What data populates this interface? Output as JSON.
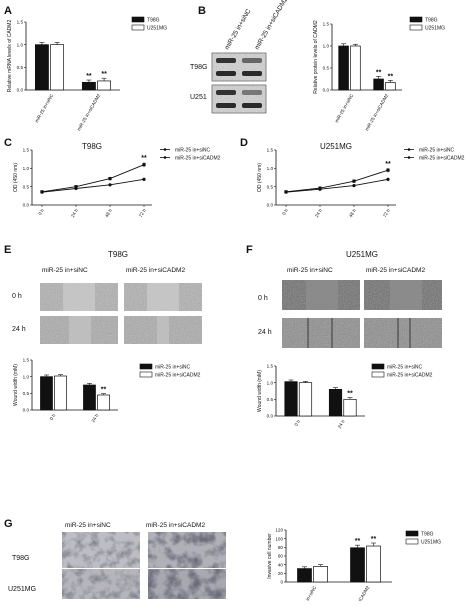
{
  "panels": [
    "A",
    "B",
    "C",
    "D",
    "E",
    "F",
    "G"
  ],
  "colors": {
    "bar_dark": "#111111",
    "bar_light": "#ffffff",
    "axis": "#111111"
  },
  "panel_A": {
    "legend": [
      "T98G",
      "U251MG"
    ],
    "ylabel": "Relative mRNA levels of CADM2",
    "categories": [
      "miR-25 in+siNC",
      "miR-25 in+siCADM2"
    ],
    "yticks": [
      "0.0",
      "0.5",
      "1.0",
      "1.5"
    ],
    "sig": [
      "**",
      "**"
    ]
  },
  "panel_B": {
    "blot_columns": [
      "miR-25 in+siNC",
      "miR-25 in+siCADM2"
    ],
    "blot_rows": [
      "T98G",
      "U251"
    ],
    "legend": [
      "T98G",
      "U251MG"
    ],
    "ylabel": "Relative protein levels of CADM2",
    "categories": [
      "miR-25 in+siNC",
      "miR-25 in+siCADM2"
    ],
    "yticks": [
      "0.0",
      "0.5",
      "1.0",
      "1.5"
    ],
    "sig": [
      "**",
      "**"
    ]
  },
  "panel_C": {
    "title": "T98G",
    "ylabel": "OD (450 nm)",
    "xticks": [
      "0 h",
      "24 h",
      "48 h",
      "72 h"
    ],
    "yticks": [
      "0.0",
      "0.5",
      "1.0",
      "1.5"
    ],
    "legend": [
      "miR-25 in+siNC",
      "miR-25 in+siCADM2"
    ],
    "sig": "**"
  },
  "panel_D": {
    "title": "U251MG",
    "ylabel": "OD (450 nm)",
    "xticks": [
      "0 h",
      "24 h",
      "48 h",
      "72 h"
    ],
    "yticks": [
      "0.0",
      "0.5",
      "1.0",
      "1.5"
    ],
    "legend": [
      "miR-25 in+siNC",
      "miR-25 in+siCADM2"
    ],
    "sig": "**"
  },
  "panel_E": {
    "title": "T98G",
    "col_labels": [
      "miR-25 in+siNC",
      "miR-25 in+siCADM2"
    ],
    "row_labels": [
      "0 h",
      "24 h"
    ],
    "legend": [
      "miR-25 in+siNC",
      "miR-25 in+siCADM2"
    ],
    "ylabel": "Wound width (mM)",
    "categories": [
      "0 h",
      "24 h"
    ],
    "yticks": [
      "0.0",
      "0.5",
      "1.0",
      "1.5"
    ],
    "sig": "**"
  },
  "panel_F": {
    "title": "U251MG",
    "col_labels": [
      "miR-25 in+siNC",
      "miR-25 in+siCADM2"
    ],
    "row_labels": [
      "0 h",
      "24 h"
    ],
    "legend": [
      "miR-25 in+siNC",
      "miR-25 in+siCADM2"
    ],
    "ylabel": "Wound width (mM)",
    "categories": [
      "0 h",
      "24 h"
    ],
    "yticks": [
      "0.0",
      "0.5",
      "1.0",
      "1.5"
    ],
    "sig": "**"
  },
  "panel_G": {
    "col_labels": [
      "miR-25 in+siNC",
      "miR-25 in+siCADM2"
    ],
    "row_labels": [
      "T98G",
      "U251MG"
    ],
    "legend": [
      "T98G",
      "U251MG"
    ],
    "ylabel": "Invasive cell number",
    "categories": [
      "miR-25 in+siNC",
      "miR-25 in+siCADM2"
    ],
    "yticks": [
      "0",
      "20",
      "40",
      "60",
      "80",
      "100",
      "120"
    ],
    "sig": [
      "**",
      "**"
    ]
  },
  "chart_data": [
    {
      "panel": "A",
      "type": "bar",
      "categories": [
        "miR-25 in+siNC",
        "miR-25 in+siCADM2"
      ],
      "series": [
        {
          "name": "T98G",
          "values": [
            1.0,
            0.17
          ],
          "errors": [
            0.05,
            0.05
          ]
        },
        {
          "name": "U251MG",
          "values": [
            1.0,
            0.2
          ],
          "errors": [
            0.05,
            0.06
          ]
        }
      ],
      "ylabel": "Relative mRNA levels of CADM2",
      "ylim": [
        0,
        1.5
      ],
      "legend": "top-right"
    },
    {
      "panel": "B",
      "type": "bar",
      "categories": [
        "miR-25 in+siNC",
        "miR-25 in+siCADM2"
      ],
      "series": [
        {
          "name": "T98G",
          "values": [
            1.0,
            0.25
          ],
          "errors": [
            0.05,
            0.06
          ]
        },
        {
          "name": "U251MG",
          "values": [
            1.0,
            0.17
          ],
          "errors": [
            0.04,
            0.05
          ]
        }
      ],
      "ylabel": "Relative protein levels of CADM2",
      "ylim": [
        0,
        1.5
      ],
      "legend": "top-right"
    },
    {
      "panel": "C",
      "type": "line",
      "x": [
        "0 h",
        "24 h",
        "48 h",
        "72 h"
      ],
      "series": [
        {
          "name": "miR-25 in+siNC",
          "values": [
            0.35,
            0.45,
            0.55,
            0.7
          ],
          "errors": [
            0.02,
            0.03,
            0.04,
            0.05
          ]
        },
        {
          "name": "miR-25 in+siCADM2",
          "values": [
            0.36,
            0.5,
            0.72,
            1.1
          ],
          "errors": [
            0.02,
            0.03,
            0.05,
            0.07
          ]
        }
      ],
      "title": "T98G",
      "ylabel": "OD (450 nm)",
      "ylim": [
        0,
        1.5
      ],
      "legend": "right"
    },
    {
      "panel": "D",
      "type": "line",
      "x": [
        "0 h",
        "24 h",
        "48 h",
        "72 h"
      ],
      "series": [
        {
          "name": "miR-25 in+siNC",
          "values": [
            0.35,
            0.43,
            0.53,
            0.7
          ],
          "errors": [
            0.02,
            0.03,
            0.04,
            0.05
          ]
        },
        {
          "name": "miR-25 in+siCADM2",
          "values": [
            0.36,
            0.46,
            0.65,
            0.95
          ],
          "errors": [
            0.02,
            0.03,
            0.05,
            0.06
          ]
        }
      ],
      "title": "U251MG",
      "ylabel": "OD (450 nm)",
      "ylim": [
        0,
        1.5
      ],
      "legend": "right"
    },
    {
      "panel": "E",
      "type": "bar",
      "categories": [
        "0 h",
        "24 h"
      ],
      "series": [
        {
          "name": "miR-25 in+siNC",
          "values": [
            1.0,
            0.75
          ],
          "errors": [
            0.05,
            0.05
          ]
        },
        {
          "name": "miR-25 in+siCADM2",
          "values": [
            1.02,
            0.45
          ],
          "errors": [
            0.04,
            0.04
          ]
        }
      ],
      "ylabel": "Wound width (mM)",
      "ylim": [
        0,
        1.5
      ],
      "legend": "top-right"
    },
    {
      "panel": "F",
      "type": "bar",
      "categories": [
        "0 h",
        "24 h"
      ],
      "series": [
        {
          "name": "miR-25 in+siNC",
          "values": [
            1.03,
            0.8
          ],
          "errors": [
            0.05,
            0.05
          ]
        },
        {
          "name": "miR-25 in+siCADM2",
          "values": [
            1.0,
            0.5
          ],
          "errors": [
            0.04,
            0.05
          ]
        }
      ],
      "ylabel": "Wound width (mM)",
      "ylim": [
        0,
        1.5
      ],
      "legend": "top-right"
    },
    {
      "panel": "G",
      "type": "bar",
      "categories": [
        "miR-25 in+siNC",
        "miR-25 in+siCADM2"
      ],
      "series": [
        {
          "name": "T98G",
          "values": [
            31,
            79
          ],
          "errors": [
            4,
            6
          ]
        },
        {
          "name": "U251MG",
          "values": [
            36,
            83
          ],
          "errors": [
            4,
            7
          ]
        }
      ],
      "ylabel": "Invasive cell number",
      "ylim": [
        0,
        120
      ],
      "legend": "top-right"
    }
  ]
}
